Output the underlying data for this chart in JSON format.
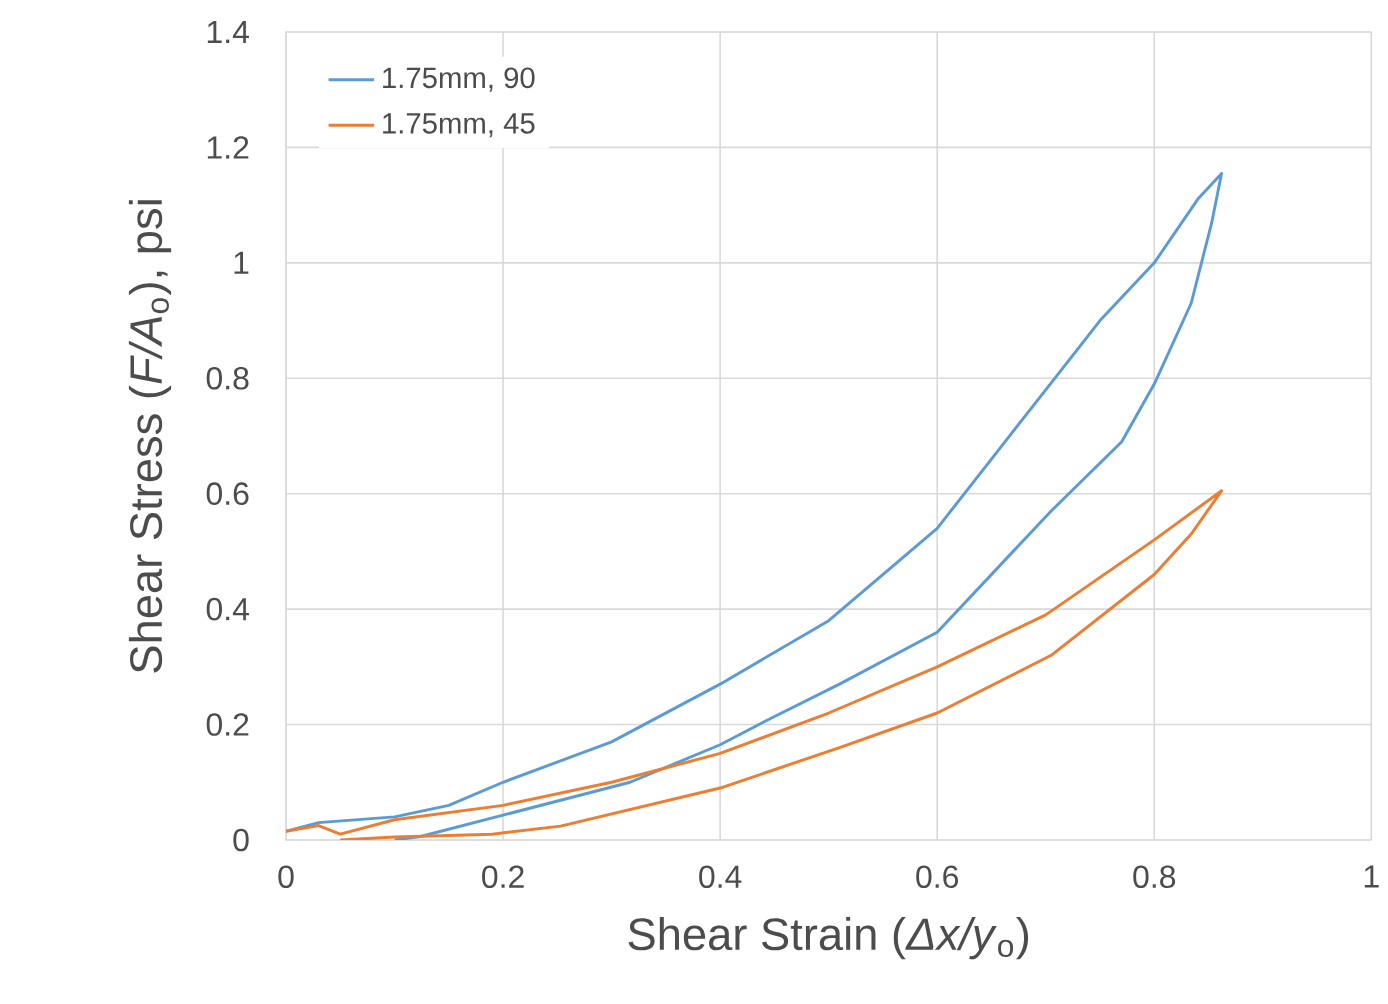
{
  "chart_data": {
    "type": "line",
    "xlabel": "Shear Strain (*Δx/y*$_{o}$)",
    "ylabel": "Shear Stress (*F/A*$_{o}$), psi",
    "xlim": [
      0,
      1
    ],
    "ylim": [
      0,
      1.4
    ],
    "xticks": [
      0,
      0.2,
      0.4,
      0.6,
      0.8,
      1
    ],
    "yticks": [
      0,
      0.2,
      0.4,
      0.6,
      0.8,
      1,
      1.2,
      1.4
    ],
    "grid": true,
    "legend": "top left",
    "marker": "none",
    "line_style": "solid",
    "series": [
      {
        "name": "1.75mm, 90",
        "color": "#5b9bd5",
        "x": [
          0,
          0.03,
          0.1,
          0.15,
          0.2,
          0.3,
          0.4,
          0.5,
          0.55,
          0.6,
          0.65,
          0.7,
          0.75,
          0.8,
          0.84,
          0.862,
          0.853,
          0.834,
          0.8,
          0.77,
          0.705,
          0.6,
          0.51,
          0.446,
          0.4,
          0.317,
          0.2,
          0.124,
          0.1
        ],
        "values": [
          0.015,
          0.03,
          0.04,
          0.06,
          0.1,
          0.17,
          0.27,
          0.38,
          0.46,
          0.54,
          0.66,
          0.78,
          0.9,
          1.0,
          1.11,
          1.155,
          1.07,
          0.93,
          0.79,
          0.69,
          0.57,
          0.36,
          0.27,
          0.21,
          0.165,
          0.1,
          0.043,
          0.006,
          0
        ]
      },
      {
        "name": "1.75mm, 45",
        "color": "#ed7d31",
        "x": [
          0,
          0.03,
          0.05,
          0.1,
          0.2,
          0.3,
          0.4,
          0.5,
          0.6,
          0.7,
          0.8,
          0.862,
          0.834,
          0.8,
          0.705,
          0.6,
          0.51,
          0.4,
          0.253,
          0.19,
          0.1,
          0.05
        ],
        "values": [
          0.015,
          0.025,
          0.01,
          0.035,
          0.06,
          0.1,
          0.15,
          0.22,
          0.3,
          0.39,
          0.52,
          0.605,
          0.53,
          0.46,
          0.32,
          0.22,
          0.16,
          0.09,
          0.024,
          0.01,
          0.005,
          0
        ]
      }
    ]
  }
}
